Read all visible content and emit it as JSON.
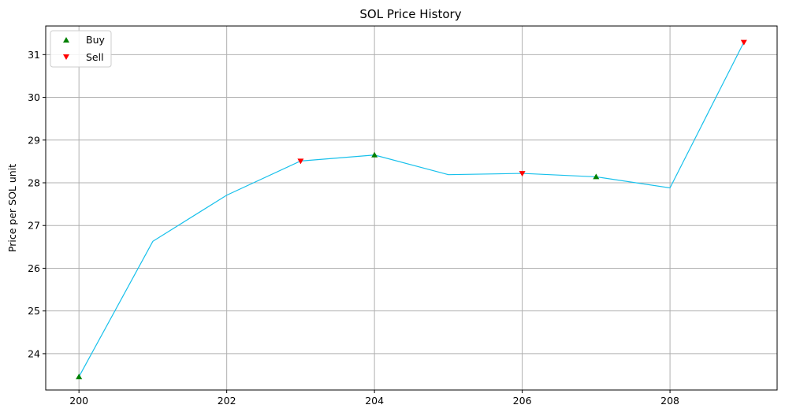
{
  "chart_data": {
    "type": "line",
    "title": "SOL Price History",
    "xlabel": "",
    "ylabel": "Price per SOL unit",
    "xlim": [
      199.55,
      209.45
    ],
    "ylim": [
      23.15,
      31.67
    ],
    "xticks": [
      200,
      202,
      204,
      206,
      208
    ],
    "yticks": [
      24,
      25,
      26,
      27,
      28,
      29,
      30,
      31
    ],
    "grid": true,
    "legend_position": "top-left",
    "colors": {
      "line": "#17c0eb",
      "buy": "#008000",
      "sell": "#ff0000",
      "grid": "#b0b0b0"
    },
    "series": [
      {
        "x": [
          200,
          201,
          202,
          203,
          204,
          205,
          206,
          207,
          208,
          209
        ],
        "y": [
          23.46,
          26.63,
          27.71,
          28.51,
          28.65,
          28.19,
          28.22,
          28.14,
          27.88,
          31.29
        ]
      }
    ],
    "markers": [
      {
        "name": "Buy",
        "symbol": "triangle-up",
        "points": [
          [
            200,
            23.46
          ],
          [
            204,
            28.65
          ],
          [
            207,
            28.14
          ]
        ]
      },
      {
        "name": "Sell",
        "symbol": "triangle-down",
        "points": [
          [
            203,
            28.51
          ],
          [
            206,
            28.22
          ],
          [
            209,
            31.29
          ]
        ]
      }
    ]
  }
}
